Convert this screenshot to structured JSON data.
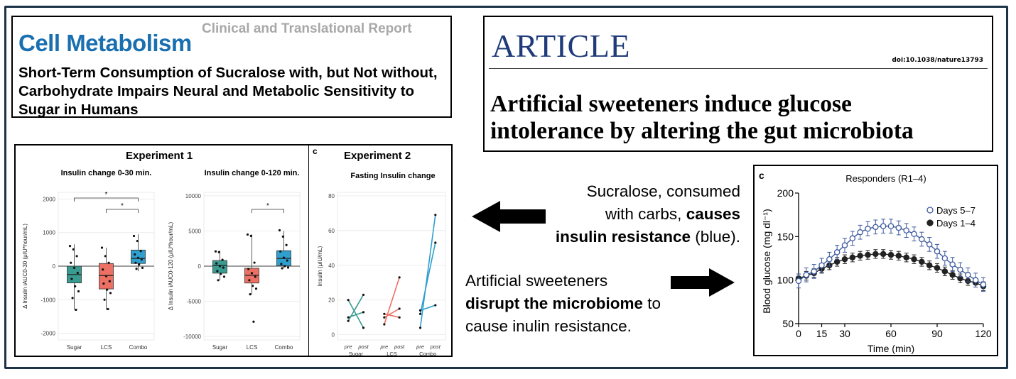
{
  "cell_metabolism": {
    "brand": "Cell Metabolism",
    "report_type": "Clinical and Translational Report",
    "title": "Short-Term Consumption of Sucralose with, but Not without, Carbohydrate Impairs Neural and Metabolic Sensitivity to Sugar in Humans"
  },
  "nature": {
    "label": "ARTICLE",
    "doi": "doi:10.1038/nature13793",
    "title_line1": "Artificial sweeteners induce glucose",
    "title_line2": "intolerance by altering the gut microbiota"
  },
  "messages": {
    "left_arrow_text": {
      "line1": "Sucralose, consumed",
      "line2_plain": "with carbs, ",
      "line2_bold": "causes",
      "line3_bold": "insulin resistance",
      "line3_plain": " (blue)."
    },
    "right_arrow_text": {
      "line1": "Artificial sweeteners",
      "line2_bold": "disrupt the microbiome",
      "line2_plain": " to",
      "line3": "cause inulin resistance."
    }
  },
  "colors": {
    "sugar": "#3a9b90",
    "lcs": "#ec7063",
    "combo": "#2f9fd0",
    "days57": "#3d5a9e",
    "days14": "#222222",
    "brand_blue": "#1a6fb0",
    "frame": "#1c3347"
  },
  "figure_left": {
    "experiment1_title": "Experiment 1",
    "experiment2_title": "Experiment 2",
    "panel_letter": "c"
  },
  "chart_data": [
    {
      "type": "box",
      "title": "Insulin change 0-30 min.",
      "ylabel": "Δ Insulin iAUC0-30 (μIU*hour/mL)",
      "categories": [
        "Sugar",
        "LCS",
        "Combo"
      ],
      "ylim": [
        -2200,
        2200
      ],
      "yticks": [
        -2000,
        -1000,
        0,
        1000,
        2000
      ],
      "boxes": [
        {
          "name": "Sugar",
          "q1": -500,
          "median": -250,
          "q3": 0,
          "whisker_low": -1300,
          "whisker_high": 650
        },
        {
          "name": "LCS",
          "q1": -680,
          "median": -280,
          "q3": 80,
          "whisker_low": -1300,
          "whisker_high": 550
        },
        {
          "name": "Combo",
          "q1": 80,
          "median": 230,
          "q3": 480,
          "whisker_low": -150,
          "whisker_high": 950
        }
      ],
      "points": {
        "Sugar": [
          600,
          500,
          300,
          100,
          -50,
          -200,
          -380,
          -600,
          -750,
          -950,
          -1300
        ],
        "LCS": [
          550,
          300,
          100,
          -100,
          -300,
          -450,
          -520,
          -700,
          -800,
          -1000,
          -1280
        ],
        "Combo": [
          900,
          750,
          450,
          350,
          250,
          200,
          100,
          50,
          -50,
          -80
        ]
      },
      "significance": [
        {
          "from": "Sugar",
          "to": "Combo",
          "label": "*"
        },
        {
          "from": "LCS",
          "to": "Combo",
          "label": "*"
        }
      ]
    },
    {
      "type": "box",
      "title": "Insulin change 0-120 min.",
      "ylabel": "Δ Insulin iAUC0-120 (μIU*hour/mL)",
      "categories": [
        "Sugar",
        "LCS",
        "Combo"
      ],
      "ylim": [
        -10500,
        10500
      ],
      "yticks": [
        -10000,
        -5000,
        0,
        5000,
        10000
      ],
      "boxes": [
        {
          "name": "Sugar",
          "q1": -1000,
          "median": 100,
          "q3": 800,
          "whisker_low": -2000,
          "whisker_high": 2200
        },
        {
          "name": "LCS",
          "q1": -2400,
          "median": -1300,
          "q3": -300,
          "whisker_low": -4000,
          "whisker_high": 4500
        },
        {
          "name": "Combo",
          "q1": 50,
          "median": 1100,
          "q3": 2200,
          "whisker_low": -300,
          "whisker_high": 5000
        }
      ],
      "points": {
        "Sugar": [
          2100,
          2000,
          900,
          400,
          0,
          -200,
          -700,
          -1100,
          -1500,
          -2000
        ],
        "LCS": [
          4500,
          4300,
          500,
          -400,
          -1000,
          -1500,
          -2000,
          -2800,
          -3200,
          -4000,
          -7900
        ],
        "Combo": [
          5100,
          4200,
          3000,
          2100,
          1200,
          800,
          300,
          0,
          -200,
          -300
        ]
      },
      "significance": [
        {
          "from": "LCS",
          "to": "Combo",
          "label": "*"
        }
      ]
    },
    {
      "type": "line",
      "title": "Fasting Insulin change",
      "ylabel": "Insulin (μIU/mL)",
      "ylim": [
        -3,
        82
      ],
      "yticks": [
        0,
        20,
        40,
        60,
        80
      ],
      "x_groups": [
        "Sugar",
        "LCS",
        "Combo"
      ],
      "x_ticks": [
        "pre",
        "post"
      ],
      "series": [
        {
          "group": "Sugar",
          "pre": 20,
          "post": 4
        },
        {
          "group": "Sugar",
          "pre": 8,
          "post": 23
        },
        {
          "group": "Sugar",
          "pre": 10,
          "post": 13
        },
        {
          "group": "LCS",
          "pre": 6,
          "post": 33
        },
        {
          "group": "LCS",
          "pre": 10,
          "post": 15
        },
        {
          "group": "LCS",
          "pre": 12,
          "post": 10
        },
        {
          "group": "Combo",
          "pre": 4,
          "post": 69
        },
        {
          "group": "Combo",
          "pre": 12,
          "post": 53
        },
        {
          "group": "Combo",
          "pre": 14,
          "post": 17
        }
      ]
    },
    {
      "type": "line",
      "panel_letter": "c",
      "title": "Responders (R1–4)",
      "xlabel": "Time (min)",
      "ylabel": "Blood glucose (mg dl⁻¹)",
      "xlim": [
        0,
        120
      ],
      "ylim": [
        50,
        200
      ],
      "xticks": [
        0,
        15,
        30,
        60,
        90,
        120
      ],
      "yticks": [
        50,
        100,
        150,
        200
      ],
      "x": [
        0,
        5,
        10,
        15,
        20,
        25,
        30,
        35,
        40,
        45,
        50,
        55,
        60,
        65,
        70,
        75,
        80,
        85,
        90,
        95,
        100,
        105,
        110,
        115,
        120
      ],
      "series": [
        {
          "name": "Days 5–7",
          "marker": "open-circle",
          "values": [
            99,
            106,
            110,
            117,
            124,
            132,
            140,
            148,
            155,
            159,
            161,
            162,
            162,
            160,
            157,
            153,
            147,
            141,
            133,
            125,
            118,
            112,
            106,
            100,
            95
          ],
          "error": 8
        },
        {
          "name": "Days 1–4",
          "marker": "filled-circle",
          "values": [
            102,
            105,
            108,
            113,
            117,
            121,
            124,
            126,
            128,
            129,
            130,
            130,
            129,
            128,
            126,
            124,
            121,
            117,
            114,
            110,
            106,
            102,
            99,
            97,
            93
          ],
          "error": 5
        }
      ],
      "legend_position": "top-right"
    }
  ]
}
